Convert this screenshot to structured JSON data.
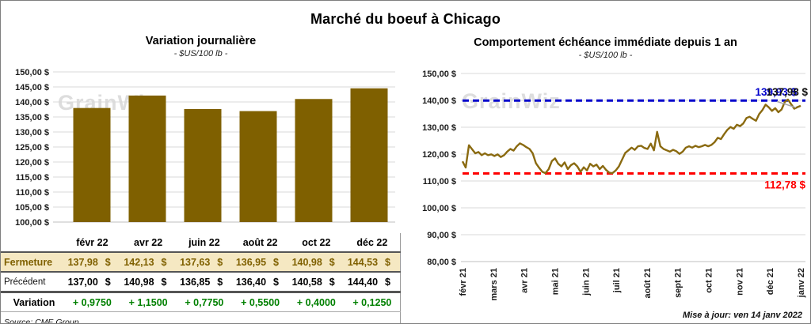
{
  "page": {
    "title": "Marché du boeuf à Chicago",
    "source": "Source: CME Group",
    "updated": "Mise à jour: ven 14 janv 2022",
    "watermark": "GrainWiz"
  },
  "table": {
    "months": [
      "févr 22",
      "avr 22",
      "juin 22",
      "août 22",
      "oct 22",
      "déc 22"
    ],
    "rows": [
      {
        "label": "Fermeture",
        "values": [
          "137,98",
          "142,13",
          "137,63",
          "136,95",
          "140,98",
          "144,53"
        ],
        "suffix": "$"
      },
      {
        "label": "Précédent",
        "values": [
          "137,00",
          "140,98",
          "136,85",
          "136,40",
          "140,58",
          "144,40"
        ],
        "suffix": "$"
      },
      {
        "label": "Variation",
        "values": [
          "+ 0,9750",
          "+ 1,1500",
          "+ 0,7750",
          "+ 0,5500",
          "+ 0,4000",
          "+ 0,1250"
        ],
        "suffix": ""
      }
    ]
  },
  "chart_data": [
    {
      "type": "bar",
      "title": "Variation  journalière",
      "subtitle": "- $US/100 lb -",
      "categories": [
        "févr 22",
        "avr 22",
        "juin 22",
        "août 22",
        "oct 22",
        "déc 22"
      ],
      "values": [
        137.98,
        142.13,
        137.63,
        136.95,
        140.98,
        144.53
      ],
      "ylim": [
        100,
        150
      ],
      "ytick_step": 5,
      "ytick_labels": [
        "100,00 $",
        "105,00 $",
        "110,00 $",
        "115,00 $",
        "120,00 $",
        "125,00 $",
        "130,00 $",
        "135,00 $",
        "140,00 $",
        "145,00 $",
        "150,00 $"
      ],
      "bar_color": "#7F6000",
      "grid_color": "#d9d9d9"
    },
    {
      "type": "line",
      "title": "Comportement  échéance immédiate depuis 1 an",
      "subtitle": "- $US/100 lb -",
      "x_labels": [
        "févr 21",
        "mars 21",
        "avr 21",
        "mai 21",
        "juin 21",
        "juil 21",
        "août 21",
        "sept 21",
        "oct 21",
        "nov 21",
        "déc 21",
        "janv 22"
      ],
      "values": [
        117.3,
        115.0,
        123.3,
        121.8,
        120.3,
        120.8,
        119.6,
        120.3,
        119.6,
        119.9,
        119.3,
        119.9,
        118.9,
        119.6,
        120.9,
        121.9,
        121.3,
        122.9,
        124.0,
        123.4,
        122.6,
        121.9,
        120.3,
        116.6,
        114.9,
        113.4,
        112.9,
        114.4,
        117.4,
        118.4,
        116.4,
        115.4,
        116.9,
        114.4,
        115.9,
        116.6,
        115.4,
        113.4,
        115.1,
        113.9,
        116.4,
        115.4,
        116.1,
        114.4,
        115.6,
        114.1,
        113.1,
        112.9,
        113.9,
        115.4,
        117.9,
        120.4,
        121.4,
        122.4,
        121.6,
        122.9,
        123.1,
        122.3,
        121.9,
        123.9,
        121.4,
        128.3,
        122.9,
        121.9,
        121.4,
        120.9,
        121.6,
        121.1,
        120.1,
        120.9,
        122.4,
        122.9,
        122.4,
        123.1,
        122.6,
        122.9,
        123.4,
        122.9,
        123.4,
        124.4,
        126.1,
        125.6,
        127.4,
        129.0,
        130.1,
        129.4,
        130.9,
        130.4,
        131.4,
        133.4,
        133.9,
        133.1,
        132.4,
        134.9,
        136.4,
        138.4,
        137.4,
        136.1,
        137.1,
        135.6,
        136.6,
        139.4,
        140.3,
        138.6,
        136.9,
        137.5,
        137.98
      ],
      "ylim": [
        80,
        150
      ],
      "ytick_step": 10,
      "ytick_labels": [
        "80,00 $",
        "90,00 $",
        "100,00 $",
        "110,00 $",
        "120,00 $",
        "130,00 $",
        "140,00 $",
        "150,00 $"
      ],
      "line_color": "#8a6a10",
      "grid_color": "#d9d9d9",
      "hlines": [
        {
          "value": 139.93,
          "color": "#0000cc",
          "label": "139,93 $"
        },
        {
          "value": 112.78,
          "color": "#ff0000",
          "label": "112,78 $"
        }
      ],
      "end_label": {
        "value": 137.98,
        "text": "137,98 $",
        "color": "#111111"
      }
    }
  ]
}
